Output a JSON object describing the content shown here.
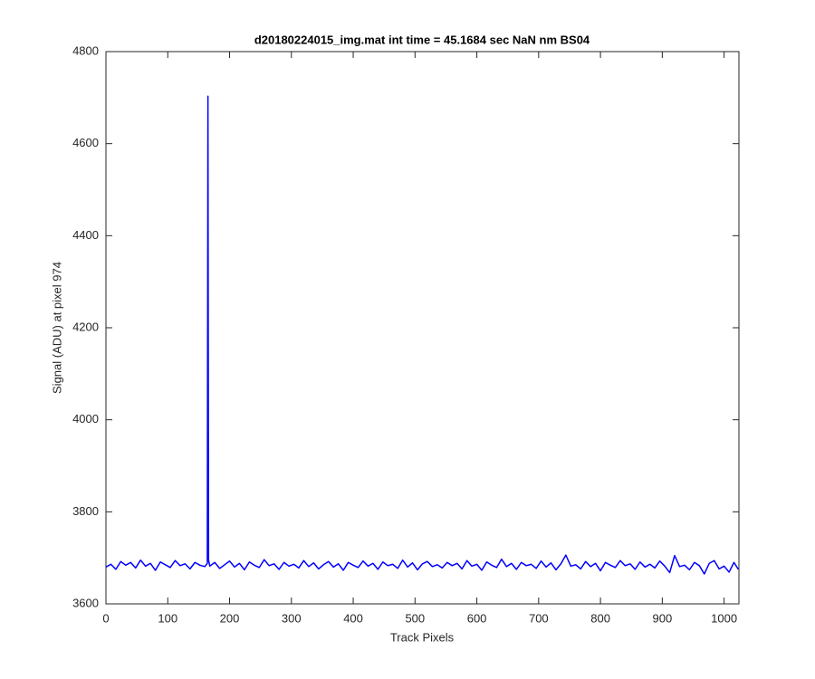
{
  "chart_data": {
    "type": "line",
    "title": "d20180224015_img.mat int time = 45.1684 sec  NaN nm BS04",
    "x_label": "Track Pixels",
    "y_label": "Signal (ADU) at pixel 974",
    "xlim": [
      0,
      1024
    ],
    "ylim": [
      3600,
      4800
    ],
    "xticks": [
      0,
      100,
      200,
      300,
      400,
      500,
      600,
      700,
      800,
      900,
      1000
    ],
    "yticks": [
      3600,
      3800,
      4000,
      4200,
      4400,
      4600,
      4800
    ],
    "color": "#0000ff",
    "x": [
      0,
      8,
      16,
      24,
      32,
      40,
      48,
      56,
      64,
      72,
      80,
      88,
      96,
      104,
      112,
      120,
      128,
      136,
      144,
      152,
      160,
      164,
      165,
      166,
      168,
      176,
      184,
      192,
      200,
      208,
      216,
      224,
      232,
      240,
      248,
      256,
      264,
      272,
      280,
      288,
      296,
      304,
      312,
      320,
      328,
      336,
      344,
      352,
      360,
      368,
      376,
      384,
      392,
      400,
      408,
      416,
      424,
      432,
      440,
      448,
      456,
      464,
      472,
      480,
      488,
      496,
      504,
      512,
      520,
      528,
      536,
      544,
      552,
      560,
      568,
      576,
      584,
      592,
      600,
      608,
      616,
      624,
      632,
      640,
      648,
      656,
      664,
      672,
      680,
      688,
      696,
      704,
      712,
      720,
      728,
      736,
      744,
      752,
      760,
      768,
      776,
      784,
      792,
      800,
      808,
      816,
      824,
      832,
      840,
      848,
      856,
      864,
      872,
      880,
      888,
      896,
      904,
      912,
      920,
      928,
      936,
      944,
      952,
      960,
      968,
      976,
      984,
      992,
      1000,
      1008,
      1016,
      1023
    ],
    "values": [
      3680,
      3686,
      3675,
      3692,
      3684,
      3690,
      3678,
      3695,
      3682,
      3688,
      3673,
      3691,
      3685,
      3679,
      3694,
      3683,
      3687,
      3676,
      3690,
      3684,
      3681,
      3688,
      4703,
      3695,
      3682,
      3690,
      3677,
      3685,
      3693,
      3680,
      3688,
      3674,
      3691,
      3684,
      3679,
      3696,
      3683,
      3687,
      3675,
      3690,
      3682,
      3686,
      3678,
      3694,
      3681,
      3689,
      3676,
      3685,
      3692,
      3680,
      3687,
      3673,
      3690,
      3684,
      3679,
      3693,
      3682,
      3688,
      3675,
      3691,
      3683,
      3686,
      3677,
      3695,
      3680,
      3689,
      3674,
      3687,
      3692,
      3681,
      3685,
      3678,
      3690,
      3683,
      3688,
      3676,
      3694,
      3682,
      3686,
      3673,
      3691,
      3684,
      3679,
      3697,
      3681,
      3688,
      3675,
      3690,
      3683,
      3686,
      3677,
      3693,
      3680,
      3689,
      3674,
      3687,
      3706,
      3682,
      3685,
      3676,
      3692,
      3681,
      3688,
      3672,
      3690,
      3684,
      3679,
      3694,
      3683,
      3687,
      3675,
      3691,
      3680,
      3686,
      3678,
      3693,
      3682,
      3668,
      3705,
      3681,
      3684,
      3674,
      3690,
      3683,
      3665,
      3688,
      3694,
      3676,
      3682,
      3669,
      3690,
      3675
    ]
  }
}
